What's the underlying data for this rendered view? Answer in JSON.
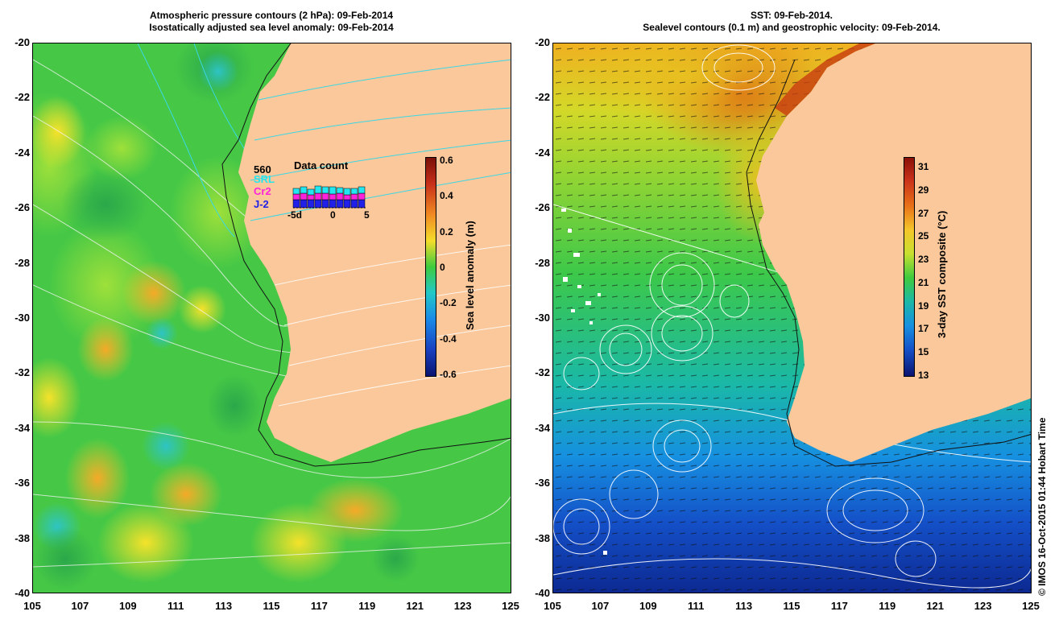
{
  "left_panel": {
    "title_line1": "Atmospheric pressure contours (2 hPa): 09-Feb-2014",
    "title_line2": "Isostatically adjusted sea level anomaly: 09-Feb-2014",
    "colorbar_label": "Sea level anomaly (m)",
    "colorbar_ticks": [
      "0.6",
      "0.4",
      "0.2",
      "0",
      "-0.2",
      "-0.4",
      "-0.6"
    ],
    "data_count": {
      "title": "Data count",
      "count": "560",
      "satellites": [
        "SRL",
        "Cr2",
        "J-2"
      ],
      "satellite_colors": [
        "#22e6f0",
        "#ff22dd",
        "#2020e8"
      ],
      "x_ticks": [
        "-5d",
        "0",
        "5"
      ]
    }
  },
  "right_panel": {
    "title_line1": "SST: 09-Feb-2014.",
    "title_line2": "Sealevel contours (0.1 m) and geostrophic velocity: 09-Feb-2014.",
    "colorbar_label": "3-day SST composite (°C)",
    "colorbar_ticks": [
      "31",
      "29",
      "27",
      "25",
      "23",
      "21",
      "19",
      "17",
      "15",
      "13"
    ]
  },
  "axes": {
    "y_ticks": [
      "-20",
      "-22",
      "-24",
      "-26",
      "-28",
      "-30",
      "-32",
      "-34",
      "-36",
      "-38",
      "-40"
    ],
    "x_ticks": [
      "105",
      "107",
      "109",
      "111",
      "113",
      "115",
      "117",
      "119",
      "121",
      "123",
      "125"
    ],
    "lat_range": [
      -40,
      -20
    ],
    "lon_range": [
      105,
      125
    ]
  },
  "credit": "© IMOS 16-Oct-2015 01:44 Hobart Time",
  "colors": {
    "land": "#fac89a",
    "sla_mid": "#3ecb3e",
    "sst_warm": "#e07010",
    "sst_cold": "#1030a0"
  }
}
